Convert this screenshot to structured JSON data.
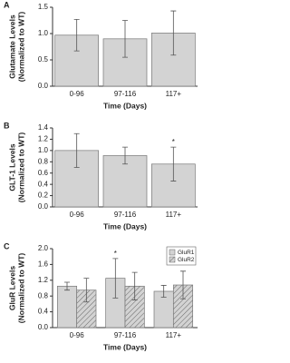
{
  "chart_data": [
    {
      "type": "bar",
      "label": "A",
      "ylabel": [
        "Glutamate Levels",
        "(Normalized to WT)"
      ],
      "xlabel": "Time (Days)",
      "categories": [
        "0-96",
        "97-116",
        "117+"
      ],
      "values": [
        0.97,
        0.9,
        1.01
      ],
      "errors": [
        0.3,
        0.35,
        0.42
      ],
      "color": "#d3d3d3",
      "ylim": [
        0,
        1.5
      ],
      "yticks": [
        {
          "value": 0,
          "label": "0.0"
        },
        0.5,
        {
          "value": 1,
          "label": "1.0"
        },
        1.5
      ]
    },
    {
      "type": "bar",
      "label": "B",
      "ylabel": [
        "GLT-1 Levels",
        "(Normalized to WT)"
      ],
      "xlabel": "Time (Days)",
      "categories": [
        "0-96",
        "97-116",
        "117+"
      ],
      "values": [
        1.0,
        0.91,
        0.76
      ],
      "errors": [
        0.3,
        0.15,
        0.3
      ],
      "color": "#d3d3d3",
      "ylim": [
        0,
        1.4
      ],
      "yticks": [
        {
          "value": 0,
          "label": "0.0"
        },
        0.2,
        0.4,
        0.6,
        0.8,
        {
          "value": 1,
          "label": "1.0"
        },
        1.2,
        1.4
      ],
      "annotations": [
        {
          "text": "*",
          "category": "117+"
        }
      ]
    },
    {
      "type": "bar",
      "label": "C",
      "ylabel": [
        "GluR Levels",
        "(Normalized to WT)"
      ],
      "xlabel": "Time (Days)",
      "categories": [
        "0-96",
        "97-116",
        "117+"
      ],
      "series": [
        {
          "name": "GluR1",
          "color": "#d3d3d3",
          "values": [
            1.05,
            1.25,
            0.92
          ],
          "errors": [
            0.1,
            0.5,
            0.15
          ]
        },
        {
          "name": "GluR2",
          "color": "#d3d3d3",
          "pattern": "hatch",
          "values": [
            0.95,
            1.05,
            1.08
          ],
          "errors": [
            0.3,
            0.35,
            0.35
          ]
        }
      ],
      "ylim": [
        0,
        2
      ],
      "yticks": [
        {
          "value": 0,
          "label": "0.0"
        },
        0.4,
        0.8,
        1.2,
        1.6,
        {
          "value": 2,
          "label": "2.0"
        }
      ],
      "legend": "top-right",
      "annotations": [
        {
          "text": "*",
          "category": "97-116",
          "series": "GluR1"
        }
      ]
    }
  ]
}
